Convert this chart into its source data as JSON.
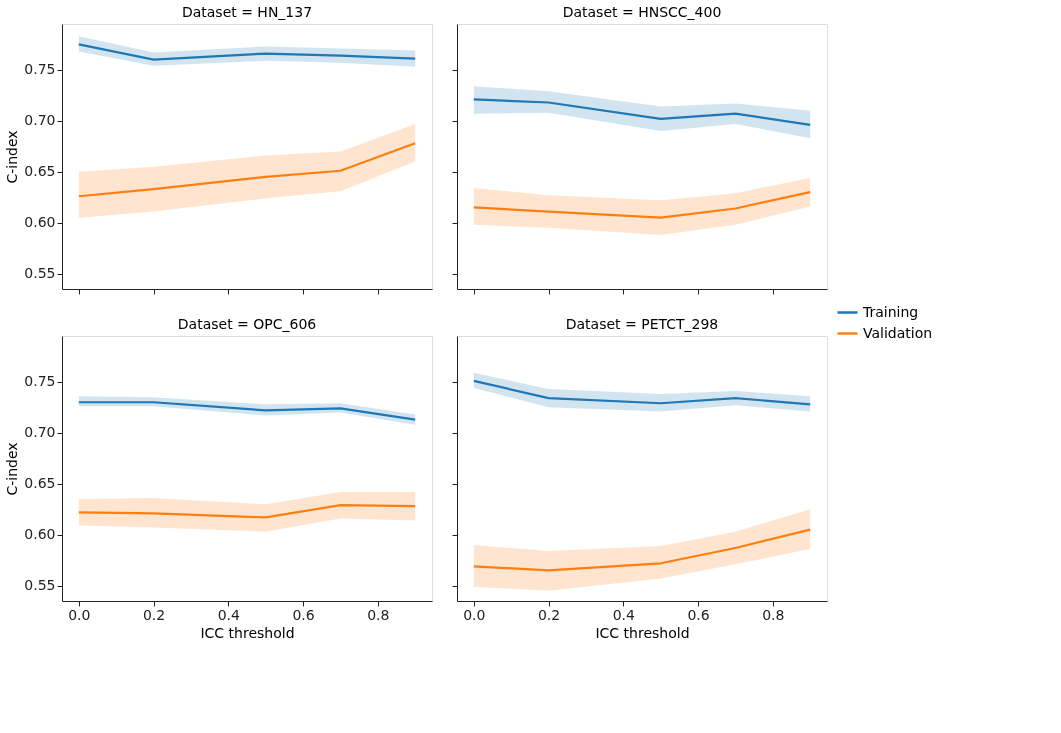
{
  "chart_data": [
    {
      "type": "line",
      "title": "Dataset = HN_137",
      "ylabel": "C-index",
      "x": [
        0,
        0.2,
        0.5,
        0.7,
        0.9
      ],
      "xlim": [
        -0.045,
        0.945
      ],
      "ylim": [
        0.535,
        0.795
      ],
      "xticks": [
        {
          "value": 0,
          "label": null
        },
        {
          "value": 0.2,
          "label": null
        },
        {
          "value": 0.4,
          "label": null
        },
        {
          "value": 0.6,
          "label": null
        },
        {
          "value": 0.8,
          "label": null
        }
      ],
      "yticks": [
        {
          "value": 0.55,
          "label": "0.55"
        },
        {
          "value": 0.6,
          "label": "0.60"
        },
        {
          "value": 0.65,
          "label": "0.65"
        },
        {
          "value": 0.7,
          "label": "0.70"
        },
        {
          "value": 0.75,
          "label": "0.75"
        }
      ],
      "tick_labels": "y",
      "grid": false,
      "legend": "right",
      "series": [
        {
          "name": "Training",
          "color": "#1f77b4",
          "values": [
            0.775,
            0.76,
            0.766,
            0.764,
            0.761
          ],
          "lower": [
            0.768,
            0.754,
            0.759,
            0.757,
            0.753
          ],
          "upper": [
            0.783,
            0.767,
            0.773,
            0.771,
            0.769
          ]
        },
        {
          "name": "Validation",
          "color": "#ff7f0e",
          "values": [
            0.626,
            0.633,
            0.645,
            0.651,
            0.678
          ],
          "lower": [
            0.605,
            0.611,
            0.624,
            0.631,
            0.66
          ],
          "upper": [
            0.65,
            0.655,
            0.666,
            0.67,
            0.697
          ]
        }
      ]
    },
    {
      "type": "line",
      "title": "Dataset = HNSCC_400",
      "x": [
        0,
        0.2,
        0.5,
        0.7,
        0.9
      ],
      "xlim": [
        -0.045,
        0.945
      ],
      "ylim": [
        0.535,
        0.795
      ],
      "xticks": [
        {
          "value": 0,
          "label": null
        },
        {
          "value": 0.2,
          "label": null
        },
        {
          "value": 0.4,
          "label": null
        },
        {
          "value": 0.6,
          "label": null
        },
        {
          "value": 0.8,
          "label": null
        }
      ],
      "yticks": [
        {
          "value": 0.55,
          "label": null
        },
        {
          "value": 0.6,
          "label": null
        },
        {
          "value": 0.65,
          "label": null
        },
        {
          "value": 0.7,
          "label": null
        },
        {
          "value": 0.75,
          "label": null
        }
      ],
      "tick_labels": false,
      "grid": false,
      "series": [
        {
          "color": "#1f77b4",
          "values": [
            0.721,
            0.718,
            0.702,
            0.707,
            0.696
          ],
          "lower": [
            0.707,
            0.708,
            0.69,
            0.697,
            0.683
          ],
          "upper": [
            0.734,
            0.729,
            0.714,
            0.717,
            0.71
          ]
        },
        {
          "color": "#ff7f0e",
          "values": [
            0.615,
            0.611,
            0.605,
            0.614,
            0.63
          ],
          "lower": [
            0.598,
            0.595,
            0.588,
            0.598,
            0.616
          ],
          "upper": [
            0.634,
            0.627,
            0.622,
            0.629,
            0.644
          ]
        }
      ]
    },
    {
      "type": "line",
      "title": "Dataset = OPC_606",
      "xlabel": "ICC threshold",
      "ylabel": "C-index",
      "x": [
        0,
        0.2,
        0.5,
        0.7,
        0.9
      ],
      "xlim": [
        -0.045,
        0.945
      ],
      "ylim": [
        0.535,
        0.795
      ],
      "xticks": [
        {
          "value": 0,
          "label": "0.0"
        },
        {
          "value": 0.2,
          "label": "0.2"
        },
        {
          "value": 0.4,
          "label": "0.4"
        },
        {
          "value": 0.6,
          "label": "0.6"
        },
        {
          "value": 0.8,
          "label": "0.8"
        }
      ],
      "yticks": [
        {
          "value": 0.55,
          "label": "0.55"
        },
        {
          "value": 0.6,
          "label": "0.60"
        },
        {
          "value": 0.65,
          "label": "0.65"
        },
        {
          "value": 0.7,
          "label": "0.70"
        },
        {
          "value": 0.75,
          "label": "0.75"
        }
      ],
      "grid": false,
      "series": [
        {
          "color": "#1f77b4",
          "values": [
            0.73,
            0.73,
            0.722,
            0.724,
            0.713
          ],
          "lower": [
            0.726,
            0.726,
            0.717,
            0.72,
            0.708
          ],
          "upper": [
            0.736,
            0.735,
            0.728,
            0.729,
            0.718
          ]
        },
        {
          "color": "#ff7f0e",
          "values": [
            0.622,
            0.621,
            0.617,
            0.629,
            0.628
          ],
          "lower": [
            0.609,
            0.607,
            0.603,
            0.616,
            0.614
          ],
          "upper": [
            0.635,
            0.636,
            0.63,
            0.642,
            0.642
          ]
        }
      ]
    },
    {
      "type": "line",
      "title": "Dataset = PETCT_298",
      "xlabel": "ICC threshold",
      "x": [
        0,
        0.2,
        0.5,
        0.7,
        0.9
      ],
      "xlim": [
        -0.045,
        0.945
      ],
      "ylim": [
        0.535,
        0.795
      ],
      "xticks": [
        {
          "value": 0,
          "label": "0.0"
        },
        {
          "value": 0.2,
          "label": "0.2"
        },
        {
          "value": 0.4,
          "label": "0.4"
        },
        {
          "value": 0.6,
          "label": "0.6"
        },
        {
          "value": 0.8,
          "label": "0.8"
        }
      ],
      "yticks": [
        {
          "value": 0.55,
          "label": null
        },
        {
          "value": 0.6,
          "label": null
        },
        {
          "value": 0.65,
          "label": null
        },
        {
          "value": 0.7,
          "label": null
        },
        {
          "value": 0.75,
          "label": null
        }
      ],
      "tick_labels": "x",
      "grid": false,
      "series": [
        {
          "color": "#1f77b4",
          "values": [
            0.751,
            0.734,
            0.729,
            0.734,
            0.728
          ],
          "lower": [
            0.744,
            0.725,
            0.721,
            0.727,
            0.721
          ],
          "upper": [
            0.759,
            0.743,
            0.738,
            0.741,
            0.736
          ]
        },
        {
          "color": "#ff7f0e",
          "values": [
            0.569,
            0.565,
            0.572,
            0.587,
            0.605
          ],
          "lower": [
            0.549,
            0.545,
            0.557,
            0.571,
            0.586
          ],
          "upper": [
            0.59,
            0.584,
            0.589,
            0.603,
            0.625
          ]
        }
      ]
    }
  ]
}
